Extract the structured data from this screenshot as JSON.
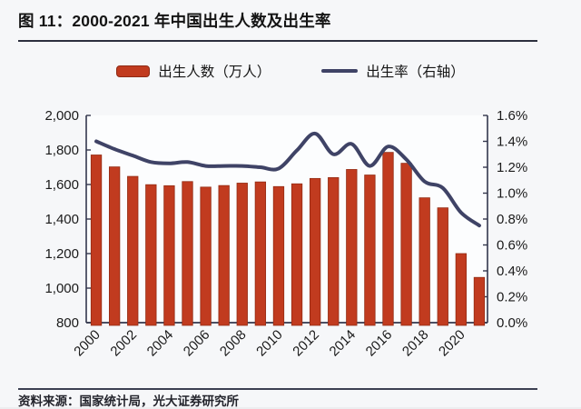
{
  "figure": {
    "title": "图 11：2000-2021 年中国出生人数及出生率",
    "source": "资料来源：国家统计局，光大证券研究所"
  },
  "legend": [
    {
      "label": "出生人数（万人）",
      "type": "bar",
      "color": "#c13b1f"
    },
    {
      "label": "出生率（右轴）",
      "type": "line",
      "color": "#3f4366"
    }
  ],
  "chart_data": {
    "type": "bar",
    "title": "2000-2021 年中国出生人数及出生率",
    "categories": [
      2000,
      2001,
      2002,
      2003,
      2004,
      2005,
      2006,
      2007,
      2008,
      2009,
      2010,
      2011,
      2012,
      2013,
      2014,
      2015,
      2016,
      2017,
      2018,
      2019,
      2020,
      2021
    ],
    "x_tick_labels": [
      "2000",
      "2002",
      "2004",
      "2006",
      "2008",
      "2010",
      "2012",
      "2014",
      "2016",
      "2018",
      "2020"
    ],
    "series": [
      {
        "name": "出生人数（万人）",
        "type": "bar",
        "axis": "left",
        "color": "#c13b1f",
        "values": [
          1771,
          1702,
          1647,
          1599,
          1593,
          1617,
          1585,
          1594,
          1608,
          1615,
          1588,
          1604,
          1635,
          1640,
          1687,
          1655,
          1786,
          1723,
          1523,
          1465,
          1200,
          1062
        ]
      },
      {
        "name": "出生率（右轴）",
        "type": "line",
        "axis": "right",
        "color": "#3f4366",
        "values": [
          1.4,
          1.34,
          1.29,
          1.24,
          1.23,
          1.24,
          1.21,
          1.21,
          1.21,
          1.2,
          1.19,
          1.33,
          1.46,
          1.3,
          1.38,
          1.21,
          1.36,
          1.26,
          1.09,
          1.04,
          0.85,
          0.75
        ]
      }
    ],
    "left_axis": {
      "min": 800,
      "max": 2000,
      "step": 200,
      "tick_labels": [
        "800",
        "1,000",
        "1,200",
        "1,400",
        "1,600",
        "1,800",
        "2,000"
      ]
    },
    "right_axis": {
      "min": 0.0,
      "max": 1.6,
      "step": 0.2,
      "tick_labels": [
        "0.0%",
        "0.2%",
        "0.4%",
        "0.6%",
        "0.8%",
        "1.0%",
        "1.2%",
        "1.4%",
        "1.6%"
      ]
    },
    "grid": false,
    "legend_position": "top",
    "colors": {
      "axis": "#33374d",
      "tick_text": "#1a1a1a",
      "bar_edge": "#932c14",
      "plot_bg": "#fcfdfe"
    }
  }
}
